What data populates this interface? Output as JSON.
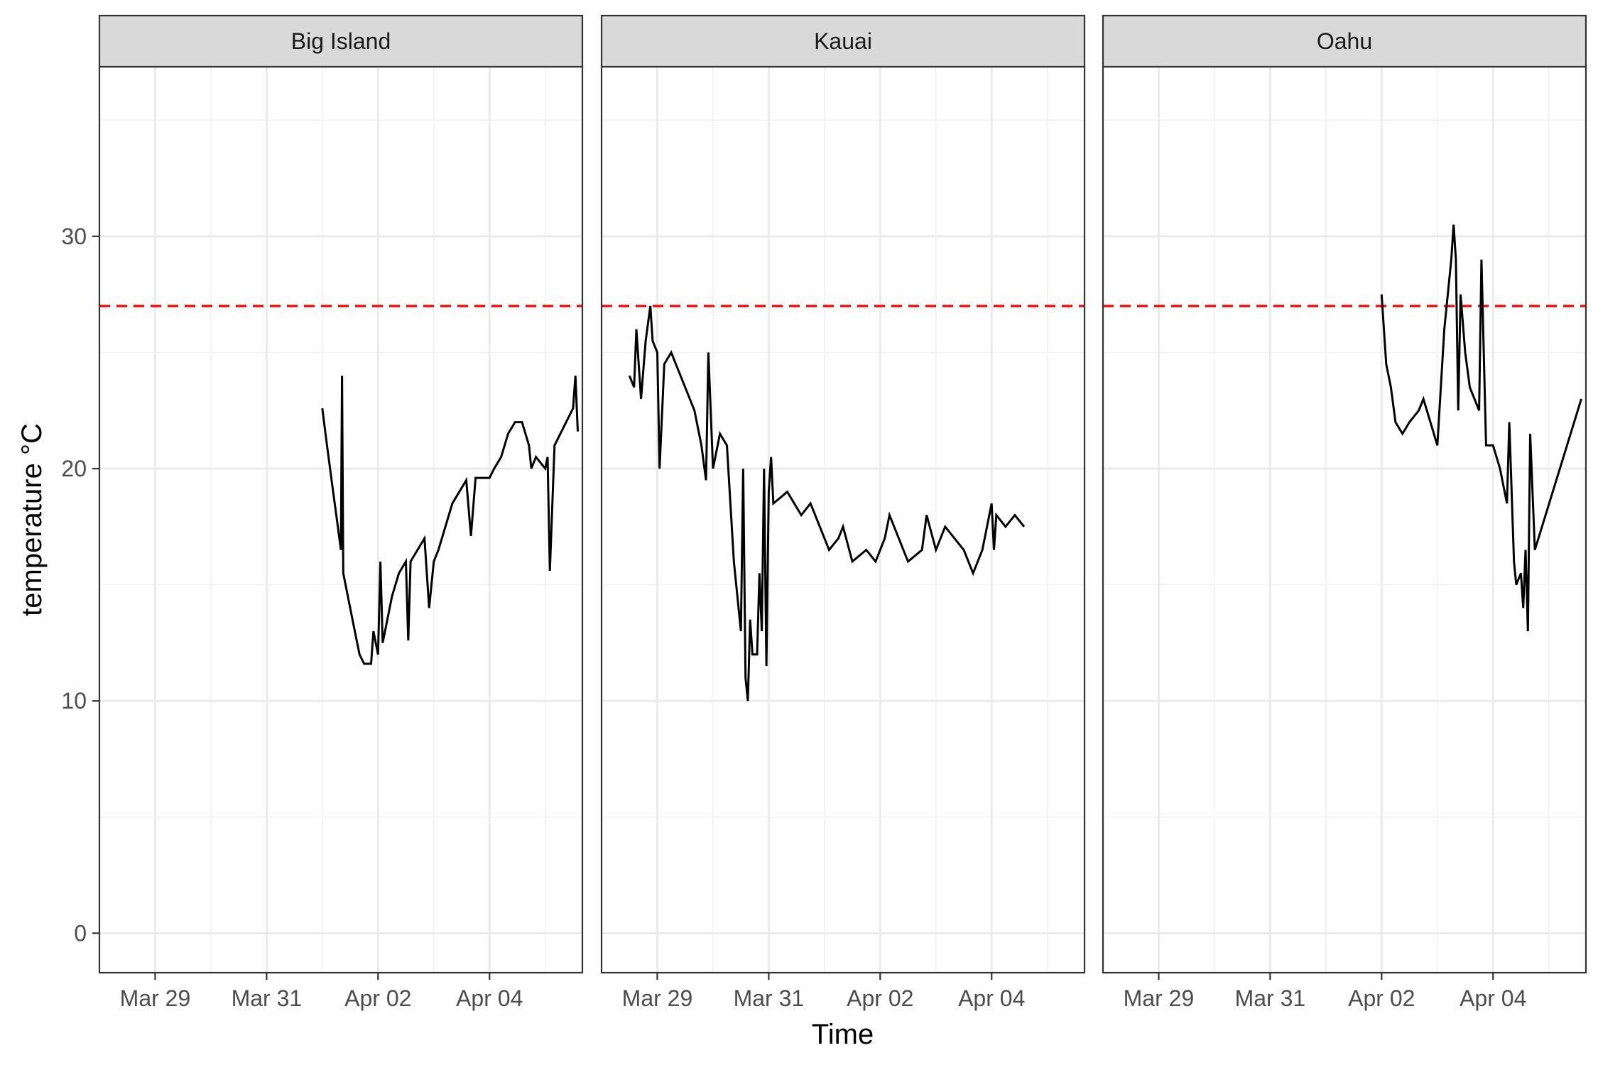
{
  "chart_data": {
    "type": "line",
    "facet_by": "location",
    "xlabel": "Time",
    "ylabel": "temperature °C",
    "ylim": [
      -1.7,
      37.3
    ],
    "xlim": [
      "2024-03-28T00:00",
      "2024-04-05T16:00"
    ],
    "x_ticks": [
      {
        "date": "2024-03-29",
        "label": "Mar 29"
      },
      {
        "date": "2024-03-31",
        "label": "Mar 31"
      },
      {
        "date": "2024-04-02",
        "label": "Apr 02"
      },
      {
        "date": "2024-04-04",
        "label": "Apr 04"
      }
    ],
    "x_minor_dates": [
      "2024-03-28",
      "2024-03-30",
      "2024-04-01",
      "2024-04-03",
      "2024-04-05"
    ],
    "y_ticks": [
      0,
      10,
      20,
      30
    ],
    "y_tick_labels": [
      "0",
      "10",
      "20",
      "30"
    ],
    "y_minor": [
      5,
      15,
      25,
      35
    ],
    "threshold": {
      "value": 27,
      "style": "dashed",
      "color": "#ff0000"
    },
    "grid": true,
    "legend": "none",
    "panels": [
      {
        "name": "Big Island",
        "points": [
          [
            "2024-04-01T00:00",
            22.6
          ],
          [
            "2024-04-01T02:00",
            21.0
          ],
          [
            "2024-04-01T04:00",
            19.5
          ],
          [
            "2024-04-01T06:00",
            18.0
          ],
          [
            "2024-04-01T08:00",
            16.5
          ],
          [
            "2024-04-01T08:30",
            24.0
          ],
          [
            "2024-04-01T09:00",
            15.5
          ],
          [
            "2024-04-01T11:00",
            14.5
          ],
          [
            "2024-04-01T13:00",
            13.5
          ],
          [
            "2024-04-01T16:00",
            12.0
          ],
          [
            "2024-04-01T18:00",
            11.6
          ],
          [
            "2024-04-01T21:00",
            11.6
          ],
          [
            "2024-04-01T22:00",
            13.0
          ],
          [
            "2024-04-02T00:00",
            12.0
          ],
          [
            "2024-04-02T01:00",
            16.0
          ],
          [
            "2024-04-02T02:00",
            12.5
          ],
          [
            "2024-04-02T04:00",
            13.5
          ],
          [
            "2024-04-02T06:00",
            14.5
          ],
          [
            "2024-04-02T09:00",
            15.5
          ],
          [
            "2024-04-02T12:00",
            16.0
          ],
          [
            "2024-04-02T13:00",
            12.6
          ],
          [
            "2024-04-02T14:00",
            16.0
          ],
          [
            "2024-04-02T17:00",
            16.5
          ],
          [
            "2024-04-02T20:00",
            17.0
          ],
          [
            "2024-04-02T22:00",
            14.0
          ],
          [
            "2024-04-03T00:00",
            16.0
          ],
          [
            "2024-04-03T02:00",
            16.5
          ],
          [
            "2024-04-03T05:00",
            17.5
          ],
          [
            "2024-04-03T08:00",
            18.5
          ],
          [
            "2024-04-03T11:00",
            19.0
          ],
          [
            "2024-04-03T14:00",
            19.5
          ],
          [
            "2024-04-03T16:00",
            17.1
          ],
          [
            "2024-04-03T18:00",
            19.6
          ],
          [
            "2024-04-04T00:00",
            19.6
          ],
          [
            "2024-04-04T02:00",
            20.0
          ],
          [
            "2024-04-04T05:00",
            20.5
          ],
          [
            "2024-04-04T08:00",
            21.5
          ],
          [
            "2024-04-04T11:00",
            22.0
          ],
          [
            "2024-04-04T14:00",
            22.0
          ],
          [
            "2024-04-04T17:00",
            21.0
          ],
          [
            "2024-04-04T18:00",
            20.0
          ],
          [
            "2024-04-04T20:00",
            20.5
          ],
          [
            "2024-04-05T00:00",
            20.0
          ],
          [
            "2024-04-05T01:00",
            20.5
          ],
          [
            "2024-04-05T02:00",
            15.6
          ],
          [
            "2024-04-05T04:00",
            21.0
          ],
          [
            "2024-04-05T12:00",
            22.6
          ],
          [
            "2024-04-05T13:00",
            24.0
          ],
          [
            "2024-04-05T14:00",
            21.6
          ]
        ]
      },
      {
        "name": "Kauai",
        "points": [
          [
            "2024-03-28T12:00",
            24.0
          ],
          [
            "2024-03-28T14:00",
            23.5
          ],
          [
            "2024-03-28T15:00",
            26.0
          ],
          [
            "2024-03-28T17:00",
            23.0
          ],
          [
            "2024-03-28T19:00",
            25.5
          ],
          [
            "2024-03-28T21:00",
            27.0
          ],
          [
            "2024-03-28T22:00",
            25.5
          ],
          [
            "2024-03-29T00:00",
            25.0
          ],
          [
            "2024-03-29T01:00",
            20.0
          ],
          [
            "2024-03-29T03:00",
            24.5
          ],
          [
            "2024-03-29T06:00",
            25.0
          ],
          [
            "2024-03-29T08:00",
            24.5
          ],
          [
            "2024-03-29T12:00",
            23.5
          ],
          [
            "2024-03-29T16:00",
            22.5
          ],
          [
            "2024-03-29T19:00",
            21.0
          ],
          [
            "2024-03-29T21:00",
            19.5
          ],
          [
            "2024-03-29T22:00",
            25.0
          ],
          [
            "2024-03-30T00:00",
            20.0
          ],
          [
            "2024-03-30T03:00",
            21.5
          ],
          [
            "2024-03-30T06:00",
            21.0
          ],
          [
            "2024-03-30T09:00",
            16.0
          ],
          [
            "2024-03-30T12:00",
            13.0
          ],
          [
            "2024-03-30T13:00",
            20.0
          ],
          [
            "2024-03-30T14:00",
            11.0
          ],
          [
            "2024-03-30T15:00",
            10.0
          ],
          [
            "2024-03-30T16:00",
            13.5
          ],
          [
            "2024-03-30T17:00",
            12.0
          ],
          [
            "2024-03-30T19:00",
            12.0
          ],
          [
            "2024-03-30T20:00",
            15.5
          ],
          [
            "2024-03-30T21:00",
            13.0
          ],
          [
            "2024-03-30T22:00",
            20.0
          ],
          [
            "2024-03-30T23:00",
            11.5
          ],
          [
            "2024-03-31T00:00",
            19.0
          ],
          [
            "2024-03-31T01:00",
            20.5
          ],
          [
            "2024-03-31T02:00",
            18.5
          ],
          [
            "2024-03-31T08:00",
            19.0
          ],
          [
            "2024-03-31T14:00",
            18.0
          ],
          [
            "2024-03-31T18:00",
            18.5
          ],
          [
            "2024-03-31T22:00",
            17.5
          ],
          [
            "2024-04-01T02:00",
            16.5
          ],
          [
            "2024-04-01T06:00",
            17.0
          ],
          [
            "2024-04-01T08:00",
            17.5
          ],
          [
            "2024-04-01T12:00",
            16.0
          ],
          [
            "2024-04-01T18:00",
            16.5
          ],
          [
            "2024-04-01T22:00",
            16.0
          ],
          [
            "2024-04-02T02:00",
            17.0
          ],
          [
            "2024-04-02T04:00",
            18.0
          ],
          [
            "2024-04-02T08:00",
            17.0
          ],
          [
            "2024-04-02T12:00",
            16.0
          ],
          [
            "2024-04-02T18:00",
            16.5
          ],
          [
            "2024-04-02T20:00",
            18.0
          ],
          [
            "2024-04-03T00:00",
            16.5
          ],
          [
            "2024-04-03T04:00",
            17.5
          ],
          [
            "2024-04-03T08:00",
            17.0
          ],
          [
            "2024-04-03T12:00",
            16.5
          ],
          [
            "2024-04-03T16:00",
            15.5
          ],
          [
            "2024-04-03T20:00",
            16.5
          ],
          [
            "2024-04-04T00:00",
            18.5
          ],
          [
            "2024-04-04T01:00",
            16.5
          ],
          [
            "2024-04-04T02:00",
            18.0
          ],
          [
            "2024-04-04T06:00",
            17.5
          ],
          [
            "2024-04-04T10:00",
            18.0
          ],
          [
            "2024-04-04T14:00",
            17.5
          ]
        ]
      },
      {
        "name": "Oahu",
        "points": [
          [
            "2024-04-02T00:00",
            27.5
          ],
          [
            "2024-04-02T02:00",
            24.5
          ],
          [
            "2024-04-02T04:00",
            23.5
          ],
          [
            "2024-04-02T06:00",
            22.0
          ],
          [
            "2024-04-02T09:00",
            21.5
          ],
          [
            "2024-04-02T12:00",
            22.0
          ],
          [
            "2024-04-02T16:00",
            22.5
          ],
          [
            "2024-04-02T18:00",
            23.0
          ],
          [
            "2024-04-02T21:00",
            22.0
          ],
          [
            "2024-04-03T00:00",
            21.0
          ],
          [
            "2024-04-03T03:00",
            26.0
          ],
          [
            "2024-04-03T06:00",
            29.0
          ],
          [
            "2024-04-03T07:00",
            30.5
          ],
          [
            "2024-04-03T08:00",
            29.0
          ],
          [
            "2024-04-03T09:00",
            22.5
          ],
          [
            "2024-04-03T10:00",
            27.5
          ],
          [
            "2024-04-03T12:00",
            25.0
          ],
          [
            "2024-04-03T14:00",
            23.5
          ],
          [
            "2024-04-03T16:00",
            23.0
          ],
          [
            "2024-04-03T18:00",
            22.5
          ],
          [
            "2024-04-03T19:00",
            29.0
          ],
          [
            "2024-04-03T21:00",
            21.0
          ],
          [
            "2024-04-04T00:00",
            21.0
          ],
          [
            "2024-04-04T03:00",
            20.0
          ],
          [
            "2024-04-04T06:00",
            18.5
          ],
          [
            "2024-04-04T07:00",
            22.0
          ],
          [
            "2024-04-04T09:00",
            16.0
          ],
          [
            "2024-04-04T10:00",
            15.0
          ],
          [
            "2024-04-04T12:00",
            15.5
          ],
          [
            "2024-04-04T13:00",
            14.0
          ],
          [
            "2024-04-04T14:00",
            16.5
          ],
          [
            "2024-04-04T15:00",
            13.0
          ],
          [
            "2024-04-04T16:00",
            21.5
          ],
          [
            "2024-04-04T18:00",
            16.5
          ],
          [
            "2024-04-05T14:00",
            23.0
          ]
        ]
      }
    ]
  }
}
